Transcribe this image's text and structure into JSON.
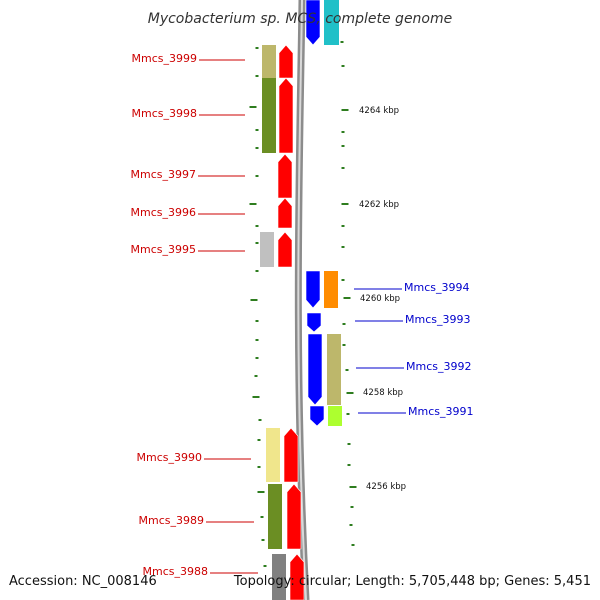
{
  "title": "Mycobacterium sp. MCS, complete genome",
  "footer": {
    "accession": "Accession: NC_008146",
    "topology": "Topology: circular; Length: 5,705,448 bp; Genes: 5,451"
  },
  "colors": {
    "backbone": "#8c8c8c",
    "tick": "#2e7d1f",
    "forward_gene": "#ff0000",
    "reverse_gene": "#0000ff",
    "forward_label": "#cc0000",
    "reverse_label": "#0000cc"
  },
  "position_labels": [
    {
      "text": "4264 kbp"
    },
    {
      "text": "4262 kbp"
    },
    {
      "text": "4260 kbp"
    },
    {
      "text": "4258 kbp"
    },
    {
      "text": "4256 kbp"
    }
  ],
  "forward_genes": [
    {
      "label": "Mmcs_3999",
      "cog_color": "#bdb76b"
    },
    {
      "label": "Mmcs_3998",
      "cog_color": "#6b8e23"
    },
    {
      "label": "Mmcs_3997",
      "cog_color": ""
    },
    {
      "label": "Mmcs_3996",
      "cog_color": ""
    },
    {
      "label": "Mmcs_3995",
      "cog_color": "#c0c0c0"
    },
    {
      "label": "Mmcs_3990",
      "cog_color": "#f0e68c"
    },
    {
      "label": "Mmcs_3989",
      "cog_color": "#6b8e23"
    },
    {
      "label": "Mmcs_3988",
      "cog_color": "#808080"
    }
  ],
  "reverse_genes": [
    {
      "label": "Mmcs_3994",
      "cog_color": "#ff8c00"
    },
    {
      "label": "Mmcs_3993",
      "cog_color": ""
    },
    {
      "label": "Mmcs_3992",
      "cog_color": "#bdb76b"
    },
    {
      "label": "Mmcs_3991",
      "cog_color": "#adff2f"
    }
  ],
  "unlabeled_top_features": [
    {
      "name": "top-reverse-gene",
      "color": "#0000ff"
    },
    {
      "name": "top-cog-box",
      "color": "#20c0c8"
    }
  ]
}
